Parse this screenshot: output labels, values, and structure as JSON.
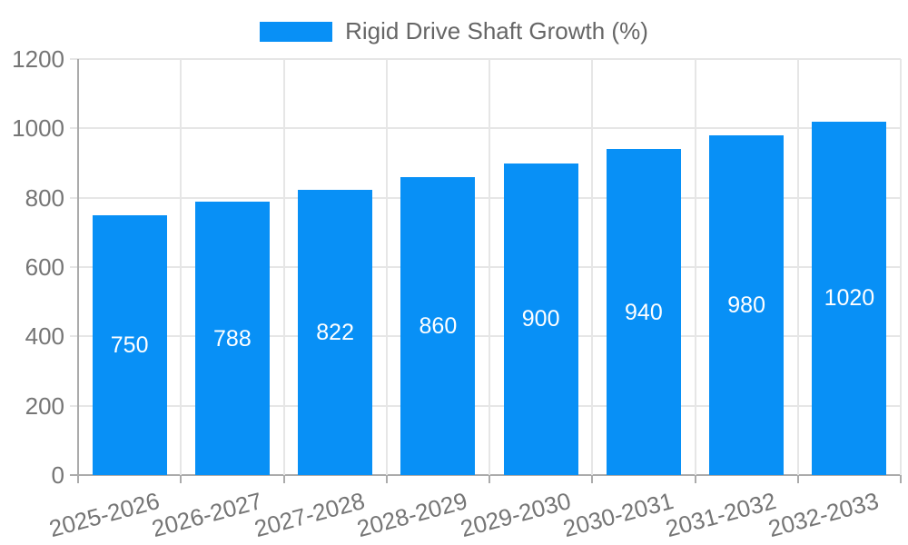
{
  "chart_data": {
    "type": "bar",
    "title": "",
    "legend": {
      "label": "Rigid Drive Shaft Growth (%)",
      "position": "top-center"
    },
    "categories": [
      "2025-2026",
      "2026-2027",
      "2027-2028",
      "2028-2029",
      "2029-2030",
      "2030-2031",
      "2031-2032",
      "2032-2033"
    ],
    "values": [
      750,
      788,
      822,
      860,
      900,
      940,
      980,
      1020
    ],
    "xlabel": "",
    "ylabel": "",
    "ylim": [
      0,
      1200
    ],
    "yticks": [
      0,
      200,
      400,
      600,
      800,
      1000,
      1200
    ],
    "grid": true,
    "x_label_rotation_deg": -15,
    "colors": {
      "bar": "#0890f6",
      "grid": "#e6e6e6",
      "axis": "#ababab",
      "tick_label": "#757575",
      "legend_text": "#666666",
      "value_label": "#ffffff",
      "background": "#ffffff"
    }
  }
}
